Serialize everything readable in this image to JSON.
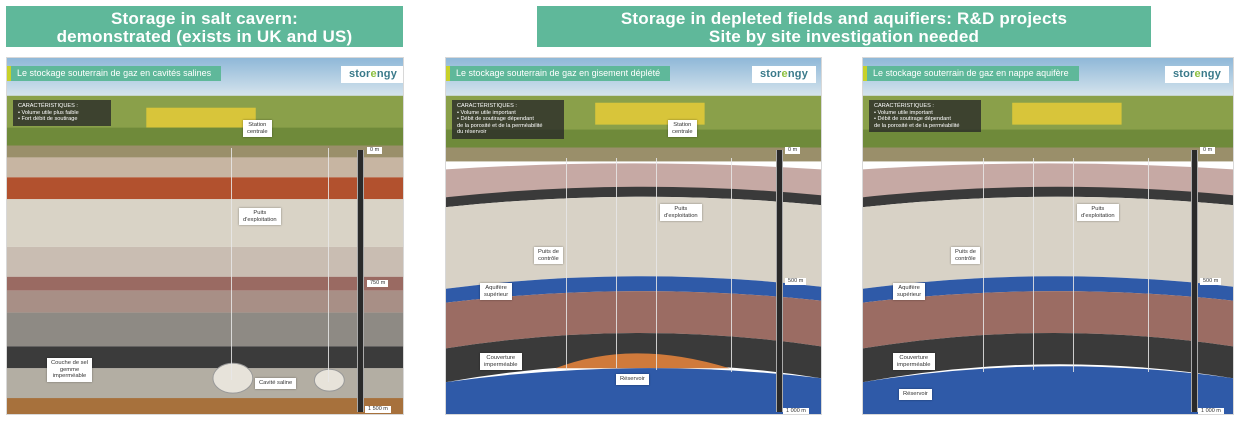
{
  "banners": {
    "left": "Storage in salt cavern:\ndemonstrated (exists in UK and US)",
    "right": "Storage in depleted fields and aquifiers: R&D projects\nSite by site investigation needed"
  },
  "logo": {
    "prefix": "stor",
    "accent": "e",
    "suffix": "ngy"
  },
  "colors": {
    "banner": "#5fb89a",
    "accent_bar": "#c7d12a"
  },
  "panels": [
    {
      "title": "Le stockage souterrain de gaz en cavités salines",
      "characteristics": [
        "CARACTÉRISTIQUES :",
        "• Volume utile plus faible",
        "• Fort débit de soutirage"
      ],
      "labels": {
        "station": "Station\ncentrale",
        "wells": "Puits\nd'exploitation",
        "cap": "Couche de sel\ngemme\nimperméable",
        "reservoir": "Cavité saline"
      },
      "depths": {
        "top": "0 m",
        "mid": "750 m",
        "bottom": "1 500 m"
      }
    },
    {
      "title": "Le stockage souterrain de gaz en gisement déplété",
      "characteristics": [
        "CARACTÉRISTIQUES :",
        "• Volume utile important",
        "• Débit de soutirage dépendant",
        "  de la porosité et de la perméabilité",
        "  du réservoir"
      ],
      "labels": {
        "station": "Station\ncentrale",
        "wells": "Puits\nd'exploitation",
        "control": "Puits de\ncontrôle",
        "aquifer": "Aquifère\nsupérieur",
        "cap": "Couverture\nimperméable",
        "reservoir": "Réservoir"
      },
      "depths": {
        "top": "0 m",
        "mid": "500 m",
        "bottom": "1 000 m"
      }
    },
    {
      "title": "Le stockage souterrain de gaz en nappe aquifère",
      "characteristics": [
        "CARACTÉRISTIQUES :",
        "• Volume utile important",
        "• Débit de soutirage dépendant",
        "  de la porosité et de la perméabilité"
      ],
      "labels": {
        "wells": "Puits\nd'exploitation",
        "control": "Puits de\ncontrôle",
        "aquifer": "Aquifère\nsupérieur",
        "cap": "Couverture\nimperméable",
        "reservoir": "Réservoir"
      },
      "depths": {
        "top": "0 m",
        "mid": "500 m",
        "bottom": "1 000 m"
      }
    }
  ]
}
